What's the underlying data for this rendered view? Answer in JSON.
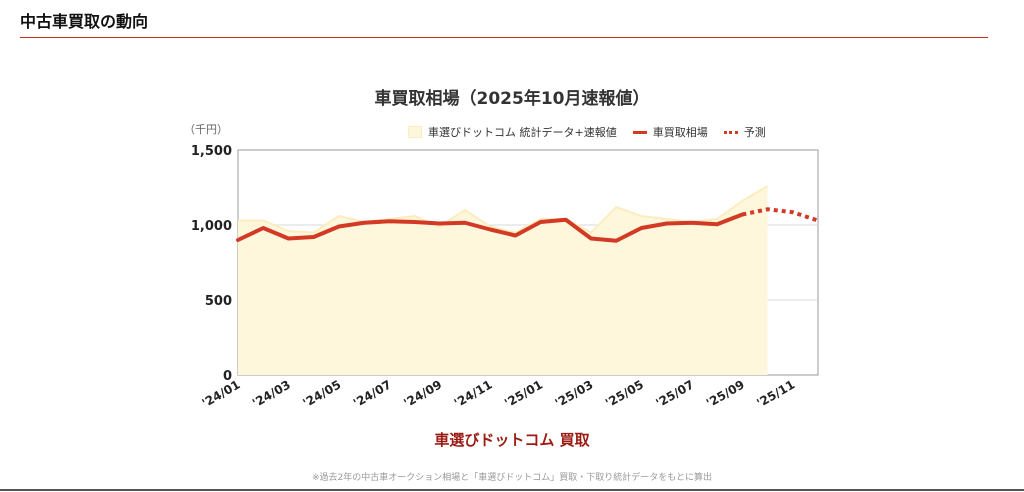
{
  "page": {
    "section_title": "中古車買取の動向",
    "brand_label": "車選びドットコム 買取",
    "footnote": "※過去2年の中古車オークション相場と「車選びドットコム」買取・下取り統計データをもとに算出"
  },
  "colors": {
    "accent": "#c4301e",
    "line": "#d33a26",
    "area_fill": "#fff7dc",
    "area_stroke": "#fcedc0",
    "brand": "#9b1c14"
  },
  "chart_data": {
    "type": "line",
    "title": "車買取相場（2025年10月速報値）",
    "ylabel": "（千円）",
    "xlabel": "",
    "ylim": [
      0,
      1500
    ],
    "yticks": [
      0,
      500,
      "1,000",
      "1,500"
    ],
    "x": [
      "2024-01",
      "2024-02",
      "2024-03",
      "2024-04",
      "2024-05",
      "2024-06",
      "2024-07",
      "2024-08",
      "2024-09",
      "2024-10",
      "2024-11",
      "2024-12",
      "2025-01",
      "2025-02",
      "2025-03",
      "2025-04",
      "2025-05",
      "2025-06",
      "2025-07",
      "2025-08",
      "2025-09",
      "2025-10",
      "2025-11",
      "2025-12"
    ],
    "xtick_labels": [
      "'24/01",
      "'24/03",
      "'24/05",
      "'24/07",
      "'24/09",
      "'24/11",
      "'25/01",
      "'25/03",
      "'25/05",
      "'25/07",
      "'25/09",
      "'25/11"
    ],
    "legend_position": "top-right",
    "grid": true,
    "series": [
      {
        "name": "車選びドットコム 統計データ+速報値",
        "kind": "area",
        "x": [
          "2024-01",
          "2024-02",
          "2024-03",
          "2024-04",
          "2024-05",
          "2024-06",
          "2024-07",
          "2024-08",
          "2024-09",
          "2024-10",
          "2024-11",
          "2024-12",
          "2025-01",
          "2025-02",
          "2025-03",
          "2025-04",
          "2025-05",
          "2025-06",
          "2025-07",
          "2025-08",
          "2025-09",
          "2025-10"
        ],
        "values": [
          1030,
          1030,
          960,
          950,
          1060,
          1020,
          1040,
          1060,
          990,
          1100,
          990,
          950,
          1040,
          1040,
          950,
          1120,
          1060,
          1040,
          1020,
          1040,
          1160,
          1260
        ]
      },
      {
        "name": "車買取相場",
        "kind": "line",
        "x": [
          "2024-01",
          "2024-02",
          "2024-03",
          "2024-04",
          "2024-05",
          "2024-06",
          "2024-07",
          "2024-08",
          "2024-09",
          "2024-10",
          "2024-11",
          "2024-12",
          "2025-01",
          "2025-02",
          "2025-03",
          "2025-04",
          "2025-05",
          "2025-06",
          "2025-07",
          "2025-08",
          "2025-09"
        ],
        "values": [
          900,
          980,
          910,
          920,
          990,
          1015,
          1025,
          1020,
          1010,
          1015,
          970,
          930,
          1020,
          1035,
          910,
          895,
          980,
          1010,
          1015,
          1005,
          1070
        ]
      },
      {
        "name": "予測",
        "kind": "dotted",
        "x": [
          "2025-09",
          "2025-10",
          "2025-11",
          "2025-12"
        ],
        "values": [
          1070,
          1105,
          1085,
          1030
        ]
      }
    ]
  }
}
